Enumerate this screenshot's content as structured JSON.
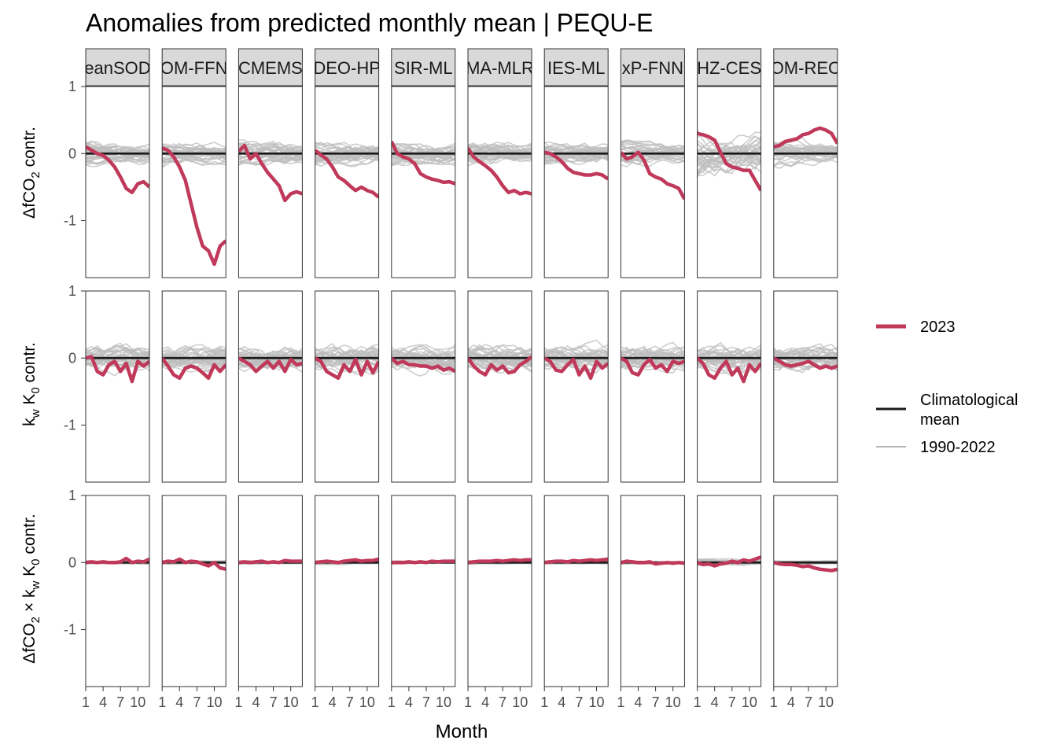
{
  "chart_data": {
    "type": "line",
    "title": "Anomalies from predicted monthly mean | PEQU-E",
    "xlabel": "Month",
    "x_ticks": [
      1,
      4,
      7,
      10
    ],
    "x_tick_labels": [
      "1",
      "4",
      "7",
      "10"
    ],
    "y_ticks": [
      -1,
      0,
      1
    ],
    "y_tick_labels": [
      "-1",
      "0",
      "1"
    ],
    "ylim": [
      -1.85,
      1.0
    ],
    "xlim": [
      1,
      12
    ],
    "panels": [
      "eanSOD",
      "OM-FFN",
      "CMEMS",
      "DEO-HP",
      "SIR-ML",
      "MA-MLR",
      "IES-ML",
      "xP-FNN",
      "HZ-CES",
      "OM-REC"
    ],
    "rows": [
      {
        "label_main": "ΔfCO",
        "label_sub": "2",
        "label_rest": " contr."
      },
      {
        "label_main": "k",
        "label_sub": "w",
        "label_mid": " K",
        "label_sub2": "0",
        "label_rest": " contr."
      },
      {
        "label_main": "ΔfCO",
        "label_sub": "2",
        "label_mid": " × k",
        "label_sub2": "w",
        "label_mid2": " K",
        "label_sub3": "0",
        "label_rest": " contr."
      }
    ],
    "legend": {
      "items": [
        {
          "label": "2023",
          "color": "#c0395a",
          "width": 5
        },
        {
          "label": "Climatological mean",
          "label_lines": [
            "Climatological",
            "mean"
          ],
          "color": "#1a1a1a",
          "width": 3
        },
        {
          "label": "1990-2022",
          "color": "#b5b5b5",
          "width": 2
        }
      ]
    },
    "colors": {
      "y2023": "#c0395a",
      "clim": "#1a1a1a",
      "hist": "#bdbdbd",
      "strip": "#d9d9d9"
    },
    "series_2023": [
      [
        [
          0.1,
          0.05,
          0.0,
          -0.03,
          -0.1,
          -0.2,
          -0.35,
          -0.52,
          -0.58,
          -0.45,
          -0.42,
          -0.5
        ],
        [
          0.08,
          0.05,
          -0.05,
          -0.2,
          -0.4,
          -0.75,
          -1.1,
          -1.38,
          -1.45,
          -1.65,
          -1.38,
          -1.3
        ],
        [
          0.03,
          0.12,
          -0.08,
          0.0,
          -0.15,
          -0.28,
          -0.38,
          -0.48,
          -0.7,
          -0.6,
          -0.57,
          -0.6
        ],
        [
          0.05,
          -0.02,
          -0.08,
          -0.2,
          -0.35,
          -0.4,
          -0.48,
          -0.55,
          -0.5,
          -0.55,
          -0.58,
          -0.65
        ],
        [
          0.18,
          0.0,
          -0.05,
          -0.08,
          -0.15,
          -0.3,
          -0.35,
          -0.38,
          -0.4,
          -0.43,
          -0.42,
          -0.45
        ],
        [
          0.08,
          -0.05,
          -0.12,
          -0.18,
          -0.25,
          -0.35,
          -0.48,
          -0.58,
          -0.55,
          -0.6,
          -0.58,
          -0.6
        ],
        [
          0.02,
          0.0,
          -0.05,
          -0.12,
          -0.22,
          -0.28,
          -0.3,
          -0.32,
          -0.32,
          -0.3,
          -0.32,
          -0.38
        ],
        [
          0.02,
          -0.08,
          -0.05,
          0.02,
          -0.1,
          -0.3,
          -0.35,
          -0.38,
          -0.45,
          -0.48,
          -0.52,
          -0.68
        ],
        [
          0.3,
          0.28,
          0.25,
          0.2,
          0.02,
          -0.15,
          -0.2,
          -0.22,
          -0.25,
          -0.25,
          -0.4,
          -0.55
        ],
        [
          0.1,
          0.12,
          0.18,
          0.2,
          0.22,
          0.28,
          0.3,
          0.35,
          0.38,
          0.35,
          0.3,
          0.15
        ]
      ],
      [
        [
          0.0,
          0.02,
          -0.2,
          -0.25,
          -0.1,
          -0.05,
          -0.2,
          -0.08,
          -0.35,
          -0.05,
          -0.12,
          -0.05
        ],
        [
          0.0,
          -0.12,
          -0.25,
          -0.3,
          -0.15,
          -0.12,
          -0.15,
          -0.22,
          -0.3,
          -0.1,
          -0.2,
          -0.1
        ],
        [
          0.0,
          -0.05,
          -0.1,
          -0.2,
          -0.12,
          -0.05,
          -0.15,
          -0.05,
          -0.2,
          -0.02,
          -0.1,
          -0.08
        ],
        [
          0.0,
          -0.05,
          -0.2,
          -0.25,
          -0.3,
          -0.1,
          -0.2,
          -0.02,
          -0.25,
          -0.05,
          -0.22,
          -0.05
        ],
        [
          0.0,
          -0.08,
          -0.05,
          -0.1,
          -0.1,
          -0.12,
          -0.12,
          -0.15,
          -0.12,
          -0.18,
          -0.15,
          -0.2
        ],
        [
          0.0,
          -0.12,
          -0.2,
          -0.25,
          -0.1,
          -0.18,
          -0.12,
          -0.22,
          -0.2,
          -0.1,
          -0.05,
          0.02
        ],
        [
          0.0,
          -0.05,
          -0.18,
          -0.2,
          -0.1,
          -0.02,
          -0.25,
          -0.12,
          -0.3,
          -0.05,
          -0.15,
          -0.08
        ],
        [
          0.0,
          -0.05,
          -0.22,
          -0.25,
          -0.1,
          -0.02,
          -0.15,
          -0.1,
          -0.2,
          -0.05,
          -0.08,
          -0.05
        ],
        [
          0.0,
          -0.08,
          -0.25,
          -0.3,
          -0.15,
          -0.05,
          -0.25,
          -0.15,
          -0.35,
          -0.1,
          -0.2,
          -0.08
        ],
        [
          0.0,
          -0.05,
          -0.1,
          -0.12,
          -0.1,
          -0.08,
          -0.05,
          -0.1,
          -0.15,
          -0.12,
          -0.15,
          -0.12
        ]
      ],
      [
        [
          0.0,
          0.01,
          0.0,
          0.01,
          0.0,
          0.0,
          0.01,
          0.06,
          0.0,
          0.02,
          0.01,
          0.05
        ],
        [
          0.0,
          0.02,
          0.01,
          0.05,
          0.0,
          0.02,
          0.01,
          -0.02,
          -0.05,
          0.0,
          -0.08,
          -0.1
        ],
        [
          0.0,
          0.01,
          0.0,
          0.01,
          0.02,
          0.0,
          0.01,
          0.0,
          0.03,
          0.02,
          0.02,
          0.02
        ],
        [
          0.0,
          0.01,
          0.02,
          0.01,
          0.0,
          0.02,
          0.03,
          0.04,
          0.02,
          0.03,
          0.03,
          0.05
        ],
        [
          0.0,
          0.0,
          0.0,
          0.01,
          0.0,
          0.01,
          0.0,
          0.02,
          0.01,
          0.02,
          0.02,
          0.02
        ],
        [
          0.0,
          0.01,
          0.02,
          0.02,
          0.02,
          0.03,
          0.02,
          0.03,
          0.04,
          0.03,
          0.04,
          0.04
        ],
        [
          0.0,
          0.01,
          0.02,
          0.02,
          0.01,
          0.03,
          0.02,
          0.03,
          0.04,
          0.03,
          0.04,
          0.05
        ],
        [
          0.0,
          0.02,
          0.01,
          0.0,
          0.0,
          0.01,
          -0.02,
          -0.01,
          0.0,
          -0.01,
          0.0,
          -0.01
        ],
        [
          0.0,
          -0.03,
          -0.02,
          -0.05,
          -0.02,
          -0.01,
          0.02,
          0.0,
          0.04,
          0.02,
          0.05,
          0.08
        ],
        [
          0.0,
          -0.02,
          -0.03,
          -0.03,
          -0.04,
          -0.06,
          -0.05,
          -0.08,
          -0.1,
          -0.11,
          -0.12,
          -0.1
        ]
      ]
    ]
  }
}
